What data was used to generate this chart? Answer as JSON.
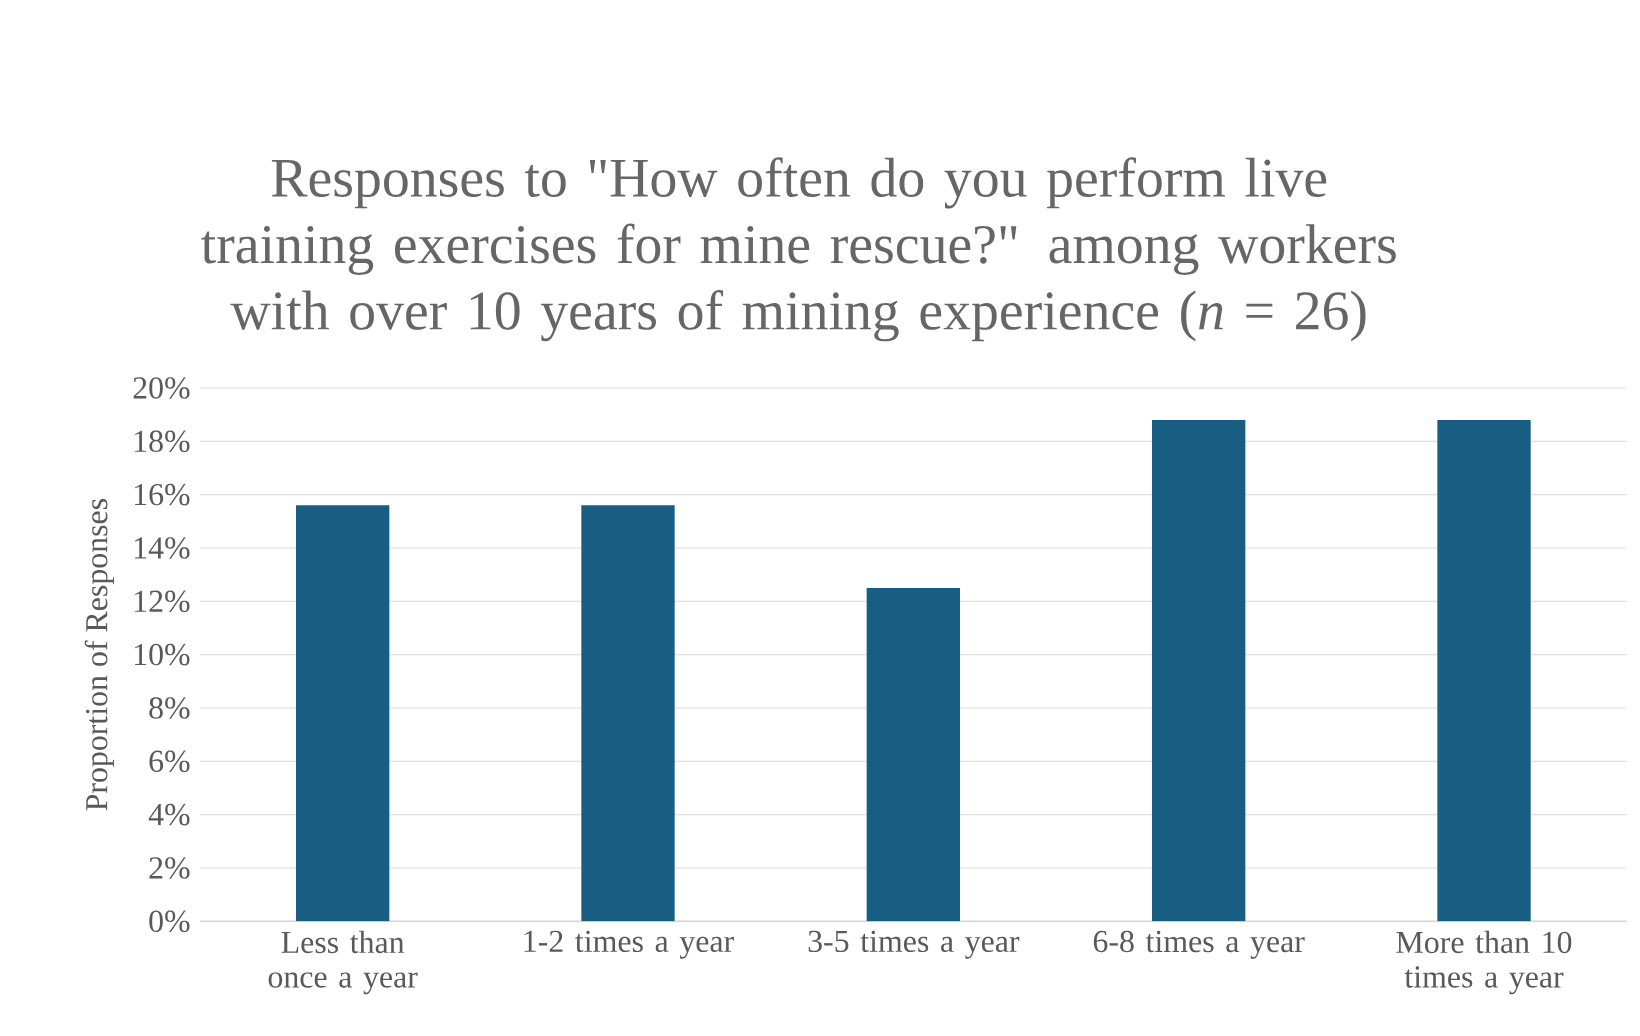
{
  "chart_data": {
    "type": "bar",
    "title": "Responses to \"How often do you perform live training exercises for mine rescue?\" among workers with over 10 years of mining experience (*n* = 26)",
    "ylabel": "Proportion of Responses",
    "categories": [
      "Less than once a year",
      "1-2 times a year",
      "3-5 times a year",
      "6-8 times a year",
      "More than 10 times a year"
    ],
    "values": [
      15.6,
      15.6,
      12.5,
      18.8,
      18.8
    ],
    "color": "#175e82",
    "ylim": [
      0,
      20
    ],
    "yticks": [
      {
        "value": 0,
        "label": "0%"
      },
      {
        "value": 2,
        "label": "2%"
      },
      {
        "value": 4,
        "label": "4%"
      },
      {
        "value": 6,
        "label": "6%"
      },
      {
        "value": 8,
        "label": "8%"
      },
      {
        "value": 10,
        "label": "10%"
      },
      {
        "value": 12,
        "label": "12%"
      },
      {
        "value": 14,
        "label": "14%"
      },
      {
        "value": 16,
        "label": "16%"
      },
      {
        "value": 18,
        "label": "18%"
      },
      {
        "value": 20,
        "label": "20%"
      }
    ],
    "grid": "y"
  }
}
